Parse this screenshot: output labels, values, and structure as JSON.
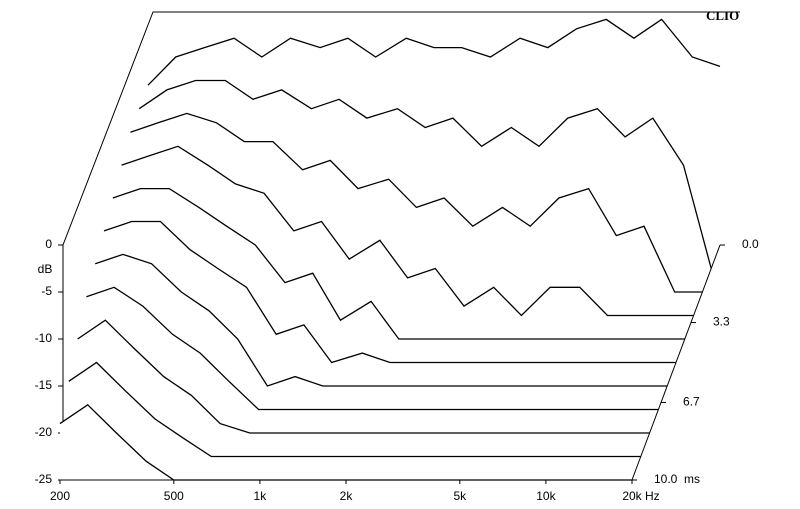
{
  "chart_data": {
    "type": "waterfall",
    "brand": "CLIO",
    "ylabel": "dB",
    "xlabel": "Hz",
    "zlabel": "ms",
    "x": [
      200,
      250,
      315,
      400,
      500,
      630,
      800,
      1000,
      1250,
      1600,
      2000,
      2500,
      3150,
      4000,
      5000,
      6300,
      8000,
      10000,
      12500,
      16000,
      20000
    ],
    "xlim": [
      200,
      20000
    ],
    "log_x": true,
    "xticks": [
      200,
      500,
      {
        "value": 1000,
        "label": "1k"
      },
      {
        "value": 2000,
        "label": "2k"
      },
      {
        "value": 5000,
        "label": "5k"
      },
      {
        "value": 10000,
        "label": "10k"
      },
      {
        "value": 20000,
        "label": "20k"
      }
    ],
    "ylim": [
      -25,
      0
    ],
    "yticks": [
      0,
      -5,
      -10,
      -15,
      -20,
      -25
    ],
    "zlim": [
      0,
      10
    ],
    "zticks": [
      {
        "value": 0,
        "label": "0.0"
      },
      3.3,
      6.7,
      {
        "value": 10,
        "label": "10.0"
      }
    ],
    "z": [
      0,
      1,
      2,
      3,
      4,
      5,
      6,
      7,
      8,
      9,
      10
    ],
    "series": [
      {
        "values": [
          -8,
          -5,
          -4,
          -3,
          -5,
          -3,
          -4,
          -3,
          -5,
          -3,
          -4,
          -4,
          -5,
          -3,
          -4,
          -2,
          -1,
          -3,
          -1,
          -5,
          -6
        ]
      },
      {
        "values": [
          -8,
          -6,
          -5,
          -5,
          -7,
          -6,
          -8,
          -7,
          -9,
          -8,
          -10,
          -9,
          -12,
          -10,
          -12,
          -9,
          -8,
          -11,
          -9,
          -14,
          -25
        ]
      },
      {
        "values": [
          -8,
          -7,
          -6,
          -7,
          -9,
          -9,
          -12,
          -11,
          -14,
          -13,
          -16,
          -15,
          -18,
          -16,
          -18,
          -15,
          -14,
          -19,
          -18,
          -25,
          -25
        ]
      },
      {
        "values": [
          -9,
          -8,
          -7,
          -9,
          -11,
          -12,
          -16,
          -15,
          -19,
          -17,
          -21,
          -20,
          -24,
          -22,
          -25,
          -22,
          -22,
          -25,
          -25,
          -25,
          -25
        ]
      },
      {
        "values": [
          -10,
          -9,
          -9,
          -11,
          -13,
          -15,
          -19,
          -18,
          -23,
          -21,
          -25,
          -25,
          -25,
          -25,
          -25,
          -25,
          -25,
          -25,
          -25,
          -25,
          -25
        ]
      },
      {
        "values": [
          -11,
          -10,
          -10,
          -13,
          -15,
          -17,
          -22,
          -21,
          -25,
          -24,
          -25,
          -25,
          -25,
          -25,
          -25,
          -25,
          -25,
          -25,
          -25,
          -25,
          -25
        ]
      },
      {
        "values": [
          -12,
          -11,
          -12,
          -15,
          -17,
          -20,
          -25,
          -24,
          -25,
          -25,
          -25,
          -25,
          -25,
          -25,
          -25,
          -25,
          -25,
          -25,
          -25,
          -25,
          -25
        ]
      },
      {
        "values": [
          -13,
          -12,
          -14,
          -17,
          -19,
          -22,
          -25,
          -25,
          -25,
          -25,
          -25,
          -25,
          -25,
          -25,
          -25,
          -25,
          -25,
          -25,
          -25,
          -25,
          -25
        ]
      },
      {
        "values": [
          -15,
          -13,
          -16,
          -19,
          -21,
          -24,
          -25,
          -25,
          -25,
          -25,
          -25,
          -25,
          -25,
          -25,
          -25,
          -25,
          -25,
          -25,
          -25,
          -25,
          -25
        ]
      },
      {
        "values": [
          -17,
          -15,
          -18,
          -21,
          -23,
          -25,
          -25,
          -25,
          -25,
          -25,
          -25,
          -25,
          -25,
          -25,
          -25,
          -25,
          -25,
          -25,
          -25,
          -25,
          -25
        ]
      },
      {
        "values": [
          -19,
          -17,
          -20,
          -23,
          -25,
          -25,
          -25,
          -25,
          -25,
          -25,
          -25,
          -25,
          -25,
          -25,
          -25,
          -25,
          -25,
          -25,
          -25,
          -25,
          -25
        ]
      }
    ]
  }
}
